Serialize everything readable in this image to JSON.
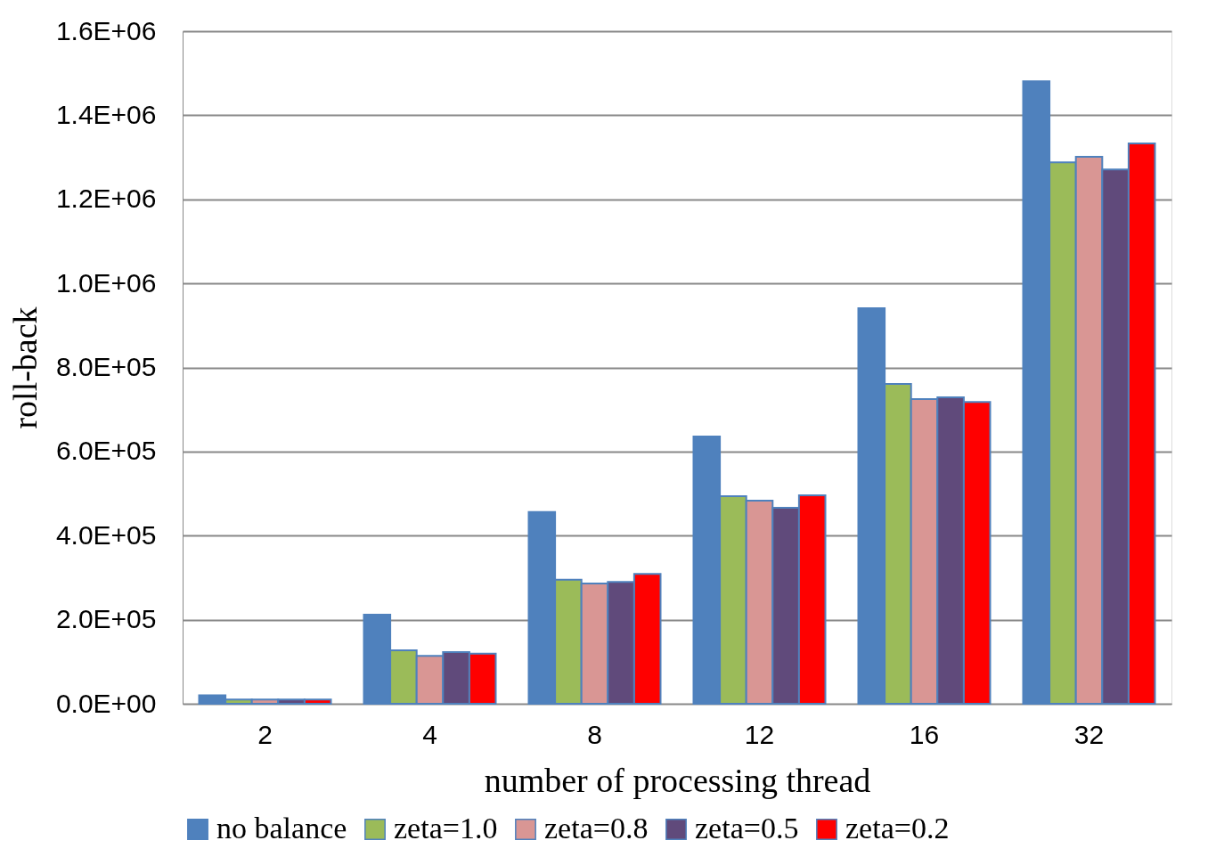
{
  "chart_data": {
    "type": "bar",
    "xlabel": "number of processing thread",
    "ylabel": "roll-back",
    "categories": [
      "2",
      "4",
      "8",
      "12",
      "16",
      "32"
    ],
    "series": [
      {
        "name": "no balance",
        "color": "#4f81bd",
        "values": [
          20000,
          212000,
          456000,
          636000,
          941000,
          1481000
        ]
      },
      {
        "name": "zeta=1.0",
        "color": "#9bbb59",
        "values": [
          10000,
          127000,
          295000,
          494000,
          761000,
          1288000
        ]
      },
      {
        "name": "zeta=0.8",
        "color": "#d99694",
        "values": [
          10000,
          114000,
          286000,
          483000,
          725000,
          1301000
        ]
      },
      {
        "name": "zeta=0.5",
        "color": "#604a7b",
        "values": [
          10000,
          123000,
          290000,
          466000,
          729000,
          1271000
        ]
      },
      {
        "name": "zeta=0.2",
        "color": "#ff0000",
        "values": [
          10000,
          119000,
          309000,
          496000,
          718000,
          1333000
        ]
      }
    ],
    "ylim": [
      0,
      1600000
    ],
    "yticks": [
      {
        "value": 0,
        "label": "0.0E+00"
      },
      {
        "value": 200000,
        "label": "2.0E+05"
      },
      {
        "value": 400000,
        "label": "4.0E+05"
      },
      {
        "value": 600000,
        "label": "6.0E+05"
      },
      {
        "value": 800000,
        "label": "8.0E+05"
      },
      {
        "value": 1000000,
        "label": "1.0E+06"
      },
      {
        "value": 1200000,
        "label": "1.2E+06"
      },
      {
        "value": 1400000,
        "label": "1.4E+06"
      },
      {
        "value": 1600000,
        "label": "1.6E+06"
      }
    ],
    "grid": "y",
    "legend": "bottom"
  }
}
